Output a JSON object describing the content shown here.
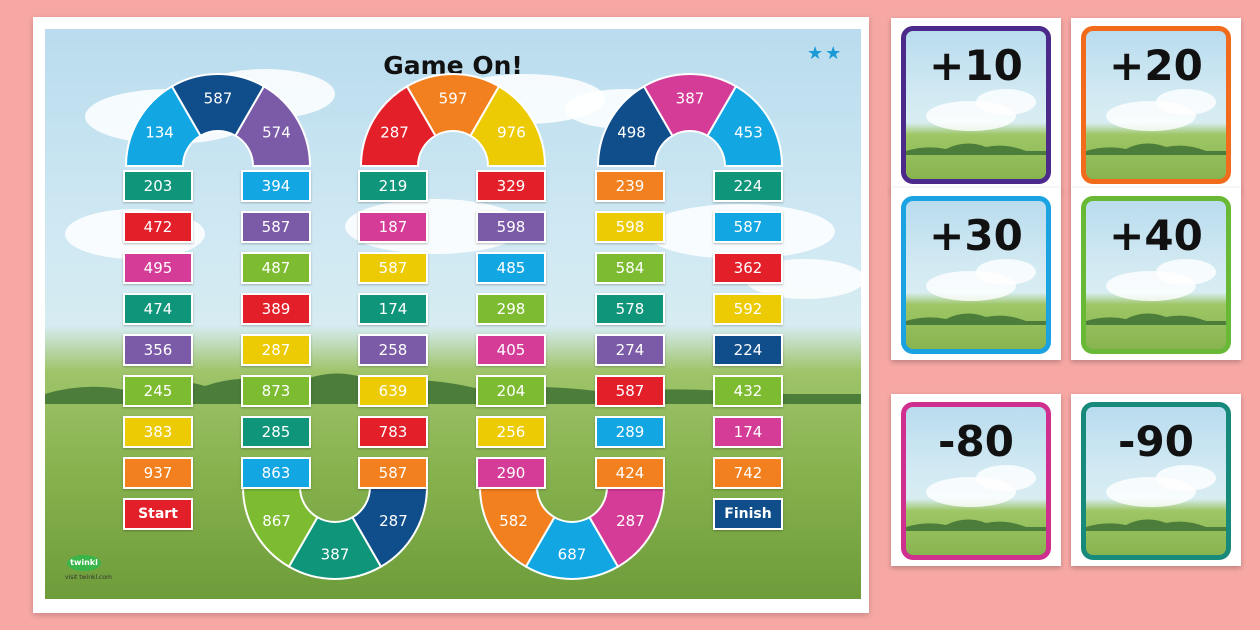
{
  "board": {
    "title": "Game On!",
    "stars": "★★",
    "logo_text": "twinkl",
    "logo_url": "visit twinkl.com"
  },
  "colors": {
    "red": "#e3202a",
    "navy": "#0f4e8a",
    "purple": "#7b5ba8",
    "blue": "#12a6e3",
    "teal": "#0f9579",
    "pink": "#d53c98",
    "green": "#7dbc30",
    "yellow": "#eccb04",
    "orange": "#f2801e"
  },
  "columns": [
    {
      "tiles": [
        {
          "v": "203",
          "c": "teal"
        },
        {
          "v": "472",
          "c": "red"
        },
        {
          "v": "495",
          "c": "pink"
        },
        {
          "v": "474",
          "c": "teal"
        },
        {
          "v": "356",
          "c": "purple"
        },
        {
          "v": "245",
          "c": "green"
        },
        {
          "v": "383",
          "c": "yellow"
        },
        {
          "v": "937",
          "c": "orange"
        },
        {
          "v": "Start",
          "c": "red"
        }
      ]
    },
    {
      "tiles": [
        {
          "v": "394",
          "c": "blue"
        },
        {
          "v": "587",
          "c": "purple"
        },
        {
          "v": "487",
          "c": "green"
        },
        {
          "v": "389",
          "c": "red"
        },
        {
          "v": "287",
          "c": "yellow"
        },
        {
          "v": "873",
          "c": "green"
        },
        {
          "v": "285",
          "c": "teal"
        },
        {
          "v": "863",
          "c": "blue"
        }
      ]
    },
    {
      "tiles": [
        {
          "v": "219",
          "c": "teal"
        },
        {
          "v": "187",
          "c": "pink"
        },
        {
          "v": "587",
          "c": "yellow"
        },
        {
          "v": "174",
          "c": "teal"
        },
        {
          "v": "258",
          "c": "purple"
        },
        {
          "v": "639",
          "c": "yellow"
        },
        {
          "v": "783",
          "c": "red"
        },
        {
          "v": "587",
          "c": "orange"
        }
      ]
    },
    {
      "tiles": [
        {
          "v": "329",
          "c": "red"
        },
        {
          "v": "598",
          "c": "purple"
        },
        {
          "v": "485",
          "c": "blue"
        },
        {
          "v": "298",
          "c": "green"
        },
        {
          "v": "405",
          "c": "pink"
        },
        {
          "v": "204",
          "c": "green"
        },
        {
          "v": "256",
          "c": "yellow"
        },
        {
          "v": "290",
          "c": "pink"
        }
      ]
    },
    {
      "tiles": [
        {
          "v": "239",
          "c": "orange"
        },
        {
          "v": "598",
          "c": "yellow"
        },
        {
          "v": "584",
          "c": "green"
        },
        {
          "v": "578",
          "c": "teal"
        },
        {
          "v": "274",
          "c": "purple"
        },
        {
          "v": "587",
          "c": "red"
        },
        {
          "v": "289",
          "c": "blue"
        },
        {
          "v": "424",
          "c": "orange"
        }
      ]
    },
    {
      "tiles": [
        {
          "v": "224",
          "c": "teal"
        },
        {
          "v": "587",
          "c": "blue"
        },
        {
          "v": "362",
          "c": "red"
        },
        {
          "v": "592",
          "c": "yellow"
        },
        {
          "v": "224",
          "c": "navy"
        },
        {
          "v": "432",
          "c": "green"
        },
        {
          "v": "174",
          "c": "pink"
        },
        {
          "v": "742",
          "c": "orange"
        },
        {
          "v": "Finish",
          "c": "navy"
        }
      ]
    }
  ],
  "top_arcs": [
    {
      "segments": [
        {
          "v": "134",
          "c": "blue"
        },
        {
          "v": "587",
          "c": "navy"
        },
        {
          "v": "574",
          "c": "purple"
        }
      ]
    },
    {
      "segments": [
        {
          "v": "287",
          "c": "red"
        },
        {
          "v": "597",
          "c": "orange"
        },
        {
          "v": "976",
          "c": "yellow"
        }
      ]
    },
    {
      "segments": [
        {
          "v": "498",
          "c": "navy"
        },
        {
          "v": "387",
          "c": "pink"
        },
        {
          "v": "453",
          "c": "blue"
        }
      ]
    }
  ],
  "bottom_arcs": [
    {
      "segments": [
        {
          "v": "867",
          "c": "green"
        },
        {
          "v": "387",
          "c": "teal"
        },
        {
          "v": "287",
          "c": "navy"
        }
      ]
    },
    {
      "segments": [
        {
          "v": "582",
          "c": "orange"
        },
        {
          "v": "687",
          "c": "blue"
        },
        {
          "v": "287",
          "c": "pink"
        }
      ]
    }
  ],
  "cards": [
    {
      "label": "+10",
      "border": "#4b2a8c"
    },
    {
      "label": "+20",
      "border": "#f26b1d"
    },
    {
      "label": "+30",
      "border": "#1aa3e0"
    },
    {
      "label": "+40",
      "border": "#69b937"
    },
    {
      "label": "-80",
      "border": "#cf2f8e"
    },
    {
      "label": "-90",
      "border": "#178a7c"
    }
  ]
}
